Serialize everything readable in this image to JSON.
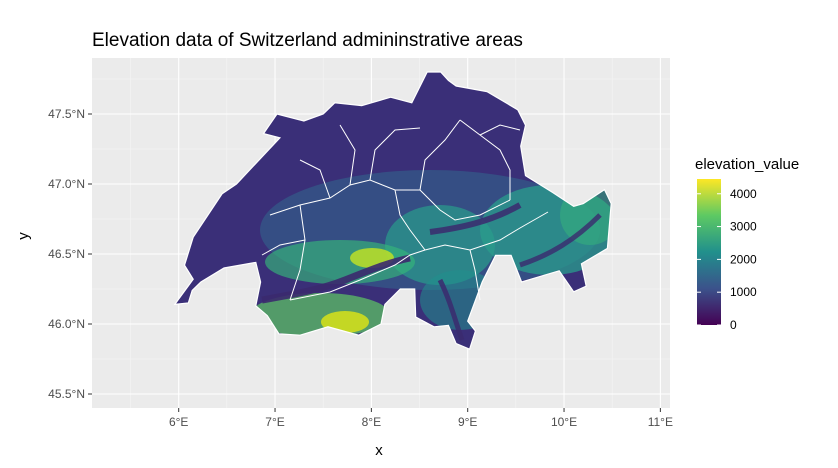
{
  "chart_data": {
    "type": "heatmap",
    "title": "Elevation data of Switzerland admininstrative areas",
    "xlabel": "x",
    "ylabel": "y",
    "x_ticks": [
      "6°E",
      "7°E",
      "8°E",
      "9°E",
      "10°E",
      "11°E"
    ],
    "x_tick_values": [
      6,
      7,
      8,
      9,
      10,
      11
    ],
    "y_ticks": [
      "45.5°N",
      "46.0°N",
      "46.5°N",
      "47.0°N",
      "47.5°N"
    ],
    "y_tick_values": [
      45.5,
      46.0,
      46.5,
      47.0,
      47.5
    ],
    "xlim": [
      5.1,
      11.1
    ],
    "ylim": [
      45.4,
      47.9
    ],
    "grid": true,
    "legend": {
      "title": "elevation_value",
      "placement": "right",
      "labels": [
        "4000",
        "3000",
        "2000",
        "1000",
        "0"
      ],
      "values": [
        4000,
        3000,
        2000,
        1000,
        0
      ],
      "range": [
        0,
        4450
      ]
    },
    "colors": {
      "panel": "#ebebeb",
      "grid_major": "#ffffff",
      "grid_minor": "#f5f5f5",
      "boundary": "#ffffff",
      "scale": [
        "#440154",
        "#3b528b",
        "#21908c",
        "#5dc963",
        "#fde725"
      ]
    }
  }
}
